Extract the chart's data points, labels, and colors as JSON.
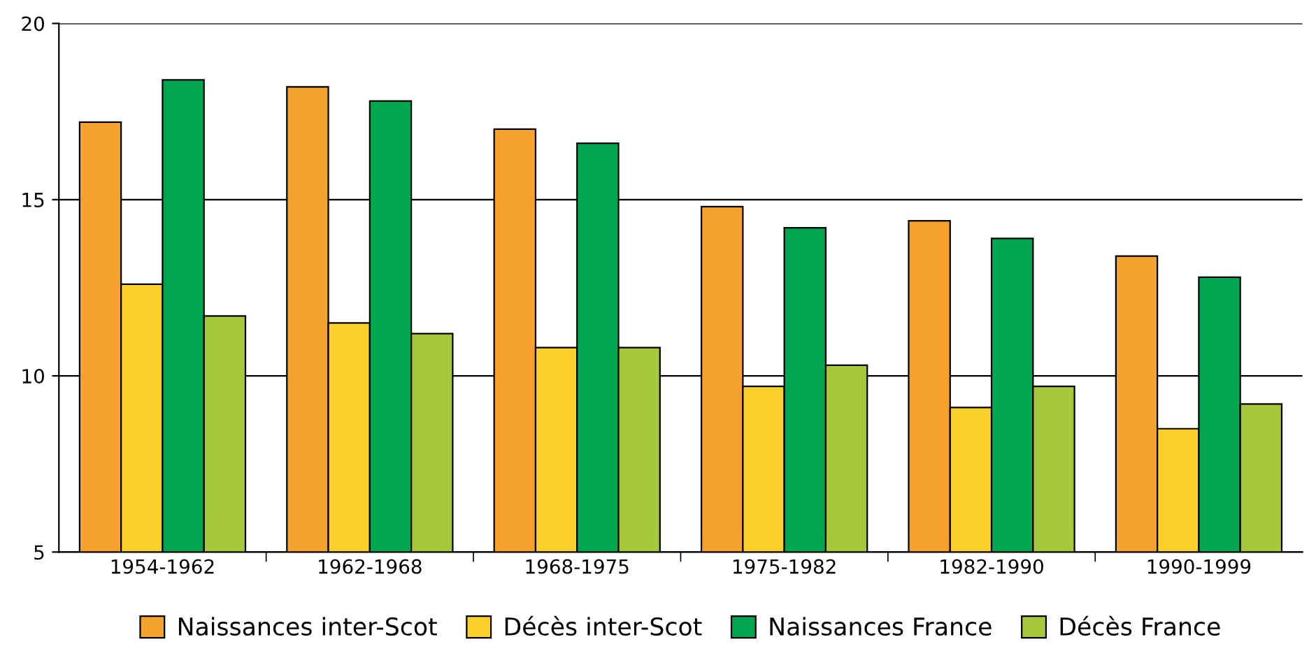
{
  "chart_data": {
    "type": "bar",
    "categories": [
      "1954-1962",
      "1962-1968",
      "1968-1975",
      "1975-1982",
      "1982-1990",
      "1990-1999"
    ],
    "series": [
      {
        "name": "Naissances inter-Scot",
        "color": "#f4a12e",
        "values": [
          17.2,
          18.2,
          17.0,
          14.8,
          14.4,
          13.4
        ]
      },
      {
        "name": "Décès inter-Scot",
        "color": "#fcd02a",
        "values": [
          12.6,
          11.5,
          10.8,
          9.7,
          9.1,
          8.5
        ]
      },
      {
        "name": "Naissances France",
        "color": "#00a650",
        "values": [
          18.4,
          17.8,
          16.6,
          14.2,
          13.9,
          12.8
        ]
      },
      {
        "name": "Décès France",
        "color": "#a6c83c",
        "values": [
          11.7,
          11.2,
          10.8,
          10.3,
          9.7,
          9.2
        ]
      }
    ],
    "ylim": [
      5,
      20
    ],
    "yticks": [
      5,
      10,
      15,
      20
    ],
    "grid": "y",
    "legend": "bottom"
  }
}
